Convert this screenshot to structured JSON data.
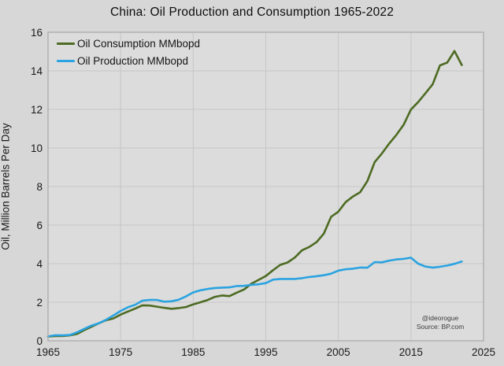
{
  "title": "China: Oil Production and Consumption 1965-2022",
  "watermark": {
    "handle": "@ideorogue",
    "source": "Source: BP.com"
  },
  "colors": {
    "page_background": "#d7d7d7",
    "plot_background": "#dcdcdc",
    "gridline": "#c6c6c6",
    "plot_border": "#aeaeae",
    "consumption_line": "#4d6b22",
    "production_line": "#2aa3e0",
    "text": "#1a1a1a"
  },
  "chart_data": {
    "type": "line",
    "title": "China: Oil Production and Consumption 1965-2022",
    "xlabel": "",
    "ylabel": "Oil, Million Barrels Per Day",
    "xlim": [
      1965,
      2025
    ],
    "ylim": [
      0,
      16
    ],
    "x_ticks": [
      1965,
      1975,
      1985,
      1995,
      2005,
      2015,
      2025
    ],
    "y_ticks": [
      0,
      2,
      4,
      6,
      8,
      10,
      12,
      14,
      16
    ],
    "grid": true,
    "legend_position": "top-left",
    "x": [
      1965,
      1966,
      1967,
      1968,
      1969,
      1970,
      1971,
      1972,
      1973,
      1974,
      1975,
      1976,
      1977,
      1978,
      1979,
      1980,
      1981,
      1982,
      1983,
      1984,
      1985,
      1986,
      1987,
      1988,
      1989,
      1990,
      1991,
      1992,
      1993,
      1994,
      1995,
      1996,
      1997,
      1998,
      1999,
      2000,
      2001,
      2002,
      2003,
      2004,
      2005,
      2006,
      2007,
      2008,
      2009,
      2010,
      2011,
      2012,
      2013,
      2014,
      2015,
      2016,
      2017,
      2018,
      2019,
      2020,
      2021,
      2022
    ],
    "series": [
      {
        "name": "Oil Consumption MMbopd",
        "color": "#4d6b22",
        "values": [
          0.22,
          0.25,
          0.25,
          0.28,
          0.36,
          0.56,
          0.73,
          0.91,
          1.07,
          1.16,
          1.36,
          1.52,
          1.67,
          1.84,
          1.83,
          1.77,
          1.71,
          1.66,
          1.7,
          1.75,
          1.89,
          2.0,
          2.12,
          2.28,
          2.35,
          2.32,
          2.5,
          2.66,
          2.96,
          3.16,
          3.36,
          3.66,
          3.94,
          4.06,
          4.32,
          4.7,
          4.87,
          5.12,
          5.56,
          6.43,
          6.7,
          7.19,
          7.48,
          7.7,
          8.28,
          9.27,
          9.72,
          10.23,
          10.68,
          11.21,
          11.99,
          12.38,
          12.84,
          13.31,
          14.28,
          14.43,
          15.03,
          14.3
        ]
      },
      {
        "name": "Oil Production MMbopd",
        "color": "#2aa3e0",
        "values": [
          0.23,
          0.29,
          0.28,
          0.3,
          0.44,
          0.62,
          0.79,
          0.91,
          1.09,
          1.31,
          1.55,
          1.74,
          1.87,
          2.08,
          2.12,
          2.12,
          2.03,
          2.05,
          2.13,
          2.3,
          2.51,
          2.62,
          2.69,
          2.74,
          2.76,
          2.77,
          2.84,
          2.85,
          2.9,
          2.93,
          2.99,
          3.17,
          3.21,
          3.21,
          3.21,
          3.25,
          3.31,
          3.35,
          3.4,
          3.48,
          3.64,
          3.71,
          3.74,
          3.8,
          3.79,
          4.08,
          4.07,
          4.16,
          4.22,
          4.25,
          4.31,
          4.0,
          3.85,
          3.8,
          3.84,
          3.9,
          3.99,
          4.11
        ]
      }
    ]
  }
}
